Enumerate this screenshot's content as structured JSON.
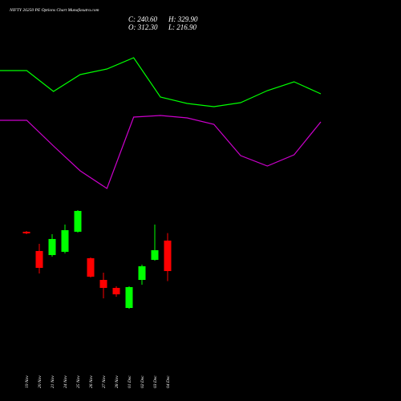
{
  "chart_data": [
    {
      "type": "line",
      "series": [
        {
          "color": "#00ff00",
          "values": [
            412,
            412,
            386,
            407,
            414,
            428,
            379,
            371,
            367,
            372,
            387,
            398,
            383
          ]
        },
        {
          "color": "#cc00cc",
          "values": [
            350,
            350,
            318,
            287,
            265,
            354,
            356,
            353,
            345,
            306,
            293,
            307,
            348
          ]
        }
      ]
    },
    {
      "type": "candlestick",
      "title": "NIFTY 26250  PE Options  Chart Munafasutra.com",
      "close_label": "C: 240.60",
      "high_label": "H: 329.90",
      "open_label": "O: 312.30",
      "low_label": "L: 216.90",
      "categories": [
        "19 Nov",
        "20 Nov",
        "21 Nov",
        "24 Nov",
        "25 Nov",
        "26 Nov",
        "27 Nov",
        "28 Nov",
        "01 Dec",
        "02 Dec",
        "03 Dec",
        "04 Dec"
      ],
      "open": [
        333.1,
        287.8,
        278.3,
        285.9,
        333.1,
        270.8,
        219.8,
        201.0,
        153.8,
        219.8,
        267.0,
        312.3
      ],
      "high": [
        335.0,
        304.8,
        327.4,
        350.0,
        384.0,
        272.7,
        236.8,
        204.8,
        204.8,
        255.7,
        350.0,
        329.9
      ],
      "low": [
        327.4,
        234.9,
        274.6,
        282.1,
        331.2,
        225.5,
        176.4,
        180.2,
        151.9,
        208.5,
        265.1,
        216.9
      ],
      "close": [
        329.3,
        248.1,
        316.1,
        336.8,
        382.1,
        227.4,
        201.0,
        185.9,
        202.9,
        251.9,
        289.7,
        240.6
      ],
      "up_color": "#00ff00",
      "down_color": "#ff0000"
    }
  ]
}
